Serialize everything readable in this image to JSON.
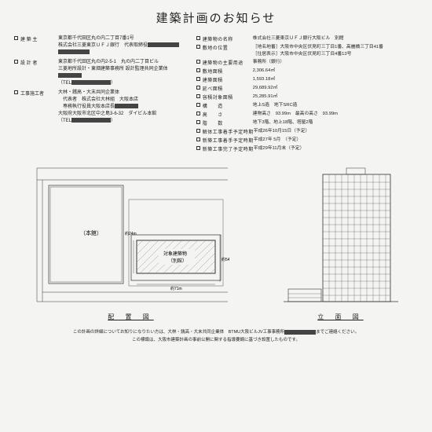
{
  "title": "建築計画のお知らせ",
  "left": [
    {
      "label": "建 築 主",
      "value": [
        "東京都千代田区丸の内二丁目7番1号",
        "株式会社三菱東京ＵＦＪ銀行　代表取締役"
      ],
      "redact1": 40
    },
    {
      "label": "設 計 者",
      "value": [
        "東京都千代田区丸の内2-5-1　丸の内二丁目ビル",
        "三菱地所設計・東畑建築事務所 設計監理共同企業体",
        "（TEL"
      ],
      "redact1": 30,
      "redact2": 50
    },
    {
      "label": "工事施工者",
      "value": [
        "大林・銭高・大末共同企業体",
        "　代表者　株式会社大林組　大阪本店",
        "　専務執行役員大阪本店長",
        "大阪府大阪市北区中之島3-6-32　ダイビル本館",
        "（TEL"
      ],
      "redact1": 30,
      "redact2": 50
    }
  ],
  "right": [
    {
      "label": "建築物の名称",
      "value": "株式会社三菱東京ＵＦＪ銀行大阪ビル　別館"
    },
    {
      "label": "敷地の位置",
      "value": "［地名地番］大阪市中央区伏見町三丁目1番、高麗橋三丁目41番\n［住居表示］大阪市中央区伏見町三丁目4番13号"
    },
    {
      "label": "建築物の主要用途",
      "value": "事務所（銀行）"
    },
    {
      "label": "敷地面積",
      "value": "2,306.64㎡"
    },
    {
      "label": "建築面積",
      "value": "1,593.18㎡"
    },
    {
      "label": "延べ面積",
      "value": "29,689.92㎡"
    },
    {
      "label": "容積対象面積",
      "value": "25,285.91㎡"
    },
    {
      "label": "構　　造",
      "value": "地上S造　地下SRC造"
    },
    {
      "label": "高　　さ",
      "value": "建物高さ　93.99m　最高の高さ　93.99m"
    },
    {
      "label": "階　　数",
      "value": "地下3階、地上18階、塔屋2階"
    },
    {
      "label": "解体工事着手予定時期",
      "value": "平成26年10月15日（予定）"
    },
    {
      "label": "新築工事着手予定時期",
      "value": "平成27年 5月　（予定）"
    },
    {
      "label": "新築工事完了予定時期",
      "value": "平成29年11月末（予定）"
    }
  ],
  "diagram1_label": "配 置 図",
  "diagram2_label": "立 面 図",
  "site": {
    "honkan": "（本館）",
    "target": "対象建築物",
    "bekkan": "（別館）",
    "w": "約71m",
    "h": "約54m",
    "d": "約24m"
  },
  "footer1": "この計画の詳細についてお知りになりたい方は、大林・銭高・大末共同企業体　BTMU大阪ビルJV工事事務所",
  "footer1b": "までご連絡ください。",
  "footer2": "この標識は、大阪市建築計画の事前公開に関する指導要綱に基づき設置したものです。"
}
